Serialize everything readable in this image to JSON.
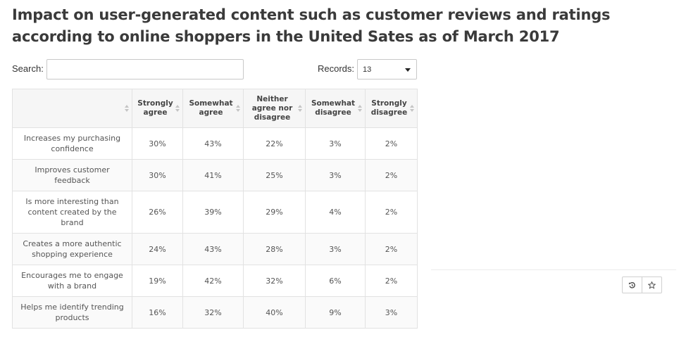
{
  "title": "Impact on user-generated content such as customer reviews and ratings according to online shoppers in the United Sates as of March 2017",
  "search": {
    "label": "Search:",
    "value": "",
    "placeholder": ""
  },
  "records": {
    "label": "Records:",
    "selected": "13"
  },
  "table": {
    "columns": [
      "",
      "Strongly agree",
      "Somewhat agree",
      "Neither agree nor disagree",
      "Somewhat disagree",
      "Strongly disagree"
    ],
    "rows": [
      [
        "Increases my purchasing confidence",
        "30%",
        "43%",
        "22%",
        "3%",
        "2%"
      ],
      [
        "Improves customer feedback",
        "30%",
        "41%",
        "25%",
        "3%",
        "2%"
      ],
      [
        "Is more interesting than content created by the brand",
        "26%",
        "39%",
        "29%",
        "4%",
        "2%"
      ],
      [
        "Creates a more authentic shopping experience",
        "24%",
        "43%",
        "28%",
        "3%",
        "2%"
      ],
      [
        "Encourages me to engage with a brand",
        "19%",
        "42%",
        "32%",
        "6%",
        "2%"
      ],
      [
        "Helps me identify trending products",
        "16%",
        "32%",
        "40%",
        "9%",
        "3%"
      ]
    ]
  },
  "toolbar": {
    "history_icon": "history-icon",
    "star_icon": "star-icon"
  }
}
